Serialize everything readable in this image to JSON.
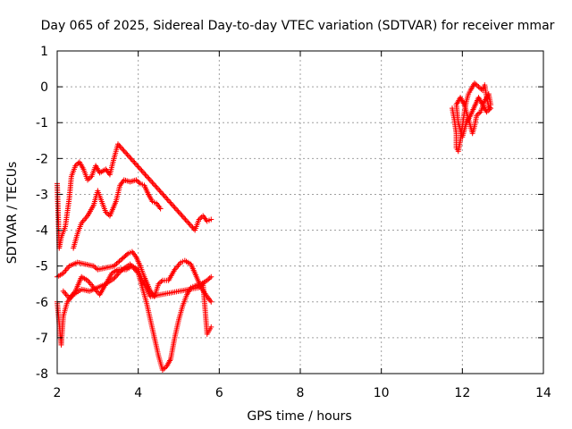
{
  "chart_data": {
    "type": "scatter",
    "title": "Day 065 of 2025, Sidereal Day-to-day VTEC variation (SDTVAR) for receiver mmar",
    "xlabel": "GPS time / hours",
    "ylabel": "SDTVAR / TECUs",
    "xlim": [
      2,
      14
    ],
    "ylim": [
      -8,
      1
    ],
    "xticks": [
      "2",
      "4",
      "6",
      "8",
      "10",
      "12",
      "14"
    ],
    "yticks": [
      "1",
      "0",
      "-1",
      "-2",
      "-3",
      "-4",
      "-5",
      "-6",
      "-7",
      "-8"
    ],
    "grid": true,
    "marker": "+",
    "color": "#ff0000",
    "series": [
      {
        "points": [
          [
            2.0,
            -6.0
          ],
          [
            2.05,
            -6.6
          ],
          [
            2.1,
            -7.2
          ],
          [
            2.15,
            -6.4
          ],
          [
            2.25,
            -6.0
          ],
          [
            2.4,
            -5.8
          ],
          [
            2.6,
            -5.65
          ],
          [
            2.8,
            -5.7
          ],
          [
            3.0,
            -5.6
          ],
          [
            3.2,
            -5.5
          ],
          [
            3.4,
            -5.35
          ],
          [
            3.6,
            -5.1
          ],
          [
            3.8,
            -4.95
          ],
          [
            4.0,
            -5.2
          ],
          [
            4.1,
            -5.6
          ],
          [
            4.2,
            -6.0
          ],
          [
            4.3,
            -6.5
          ],
          [
            4.4,
            -7.0
          ],
          [
            4.5,
            -7.5
          ],
          [
            4.6,
            -7.9
          ],
          [
            4.7,
            -7.8
          ],
          [
            4.8,
            -7.6
          ],
          [
            4.9,
            -7.0
          ],
          [
            5.0,
            -6.5
          ],
          [
            5.1,
            -6.1
          ],
          [
            5.2,
            -5.8
          ],
          [
            5.3,
            -5.6
          ],
          [
            5.4,
            -5.55
          ],
          [
            5.55,
            -5.5
          ],
          [
            5.7,
            -5.4
          ],
          [
            5.8,
            -5.3
          ]
        ]
      },
      {
        "points": [
          [
            2.0,
            -5.3
          ],
          [
            2.15,
            -5.2
          ],
          [
            2.3,
            -5.0
          ],
          [
            2.5,
            -4.9
          ],
          [
            2.7,
            -4.95
          ],
          [
            2.9,
            -5.0
          ],
          [
            3.0,
            -5.1
          ],
          [
            3.2,
            -5.05
          ],
          [
            3.4,
            -5.0
          ],
          [
            3.6,
            -4.8
          ],
          [
            3.75,
            -4.65
          ],
          [
            3.85,
            -4.6
          ],
          [
            3.95,
            -4.75
          ],
          [
            4.05,
            -5.0
          ],
          [
            4.15,
            -5.3
          ],
          [
            4.3,
            -5.7
          ],
          [
            4.4,
            -5.85
          ],
          [
            4.5,
            -5.5
          ],
          [
            4.6,
            -5.4
          ],
          [
            4.75,
            -5.4
          ],
          [
            4.9,
            -5.1
          ],
          [
            5.05,
            -4.9
          ],
          [
            5.15,
            -4.85
          ],
          [
            5.3,
            -4.95
          ],
          [
            5.4,
            -5.2
          ],
          [
            5.55,
            -5.6
          ],
          [
            5.7,
            -5.85
          ],
          [
            5.8,
            -6.0
          ]
        ]
      },
      {
        "points": [
          [
            2.0,
            -2.7
          ],
          [
            2.05,
            -4.5
          ],
          [
            2.1,
            -4.2
          ],
          [
            2.2,
            -3.9
          ],
          [
            2.3,
            -3.1
          ],
          [
            2.35,
            -2.5
          ],
          [
            2.45,
            -2.2
          ],
          [
            2.55,
            -2.1
          ],
          [
            2.65,
            -2.3
          ],
          [
            2.75,
            -2.6
          ],
          [
            2.85,
            -2.5
          ],
          [
            2.95,
            -2.2
          ],
          [
            3.05,
            -2.4
          ],
          [
            3.2,
            -2.3
          ],
          [
            3.3,
            -2.45
          ],
          [
            3.4,
            -2.0
          ],
          [
            3.5,
            -1.6
          ],
          [
            5.4,
            -4.0
          ],
          [
            5.5,
            -3.7
          ],
          [
            5.6,
            -3.6
          ],
          [
            5.7,
            -3.75
          ],
          [
            5.8,
            -3.7
          ]
        ]
      },
      {
        "points": [
          [
            2.4,
            -4.5
          ],
          [
            2.5,
            -4.1
          ],
          [
            2.6,
            -3.8
          ],
          [
            2.75,
            -3.6
          ],
          [
            2.9,
            -3.3
          ],
          [
            3.0,
            -2.9
          ],
          [
            3.1,
            -3.2
          ],
          [
            3.2,
            -3.5
          ],
          [
            3.3,
            -3.6
          ],
          [
            3.45,
            -3.2
          ],
          [
            3.55,
            -2.75
          ],
          [
            3.65,
            -2.6
          ],
          [
            3.8,
            -2.65
          ],
          [
            3.95,
            -2.6
          ],
          [
            4.05,
            -2.7
          ],
          [
            4.15,
            -2.75
          ],
          [
            4.25,
            -3.0
          ],
          [
            4.35,
            -3.2
          ],
          [
            4.45,
            -3.25
          ],
          [
            4.55,
            -3.4
          ]
        ]
      },
      {
        "points": [
          [
            2.15,
            -5.7
          ],
          [
            2.3,
            -5.9
          ],
          [
            2.45,
            -5.7
          ],
          [
            2.6,
            -5.3
          ],
          [
            2.75,
            -5.4
          ],
          [
            2.9,
            -5.6
          ],
          [
            3.05,
            -5.8
          ],
          [
            3.2,
            -5.5
          ],
          [
            3.35,
            -5.2
          ],
          [
            3.5,
            -5.1
          ],
          [
            3.7,
            -5.1
          ],
          [
            3.85,
            -5.0
          ],
          [
            4.0,
            -5.1
          ],
          [
            4.1,
            -5.4
          ],
          [
            4.2,
            -5.6
          ],
          [
            4.3,
            -5.85
          ],
          [
            5.5,
            -5.6
          ],
          [
            5.6,
            -5.5
          ],
          [
            5.7,
            -6.9
          ],
          [
            5.75,
            -6.8
          ],
          [
            5.8,
            -6.7
          ]
        ]
      },
      {
        "points": [
          [
            11.75,
            -0.6
          ],
          [
            11.8,
            -0.9
          ],
          [
            11.85,
            -1.3
          ],
          [
            11.85,
            -1.7
          ],
          [
            11.9,
            -1.8
          ],
          [
            11.95,
            -1.5
          ],
          [
            12.0,
            -1.1
          ],
          [
            12.05,
            -0.7
          ],
          [
            12.1,
            -0.4
          ],
          [
            12.15,
            -0.2
          ],
          [
            12.2,
            -0.1
          ],
          [
            12.3,
            0.1
          ],
          [
            12.4,
            0.0
          ],
          [
            12.5,
            -0.1
          ],
          [
            12.55,
            0.05
          ],
          [
            12.6,
            -0.3
          ],
          [
            12.65,
            -0.55
          ],
          [
            12.7,
            -0.6
          ],
          [
            12.6,
            -0.7
          ],
          [
            12.5,
            -0.5
          ],
          [
            12.4,
            -0.3
          ],
          [
            12.3,
            -0.55
          ],
          [
            12.2,
            -0.8
          ],
          [
            12.1,
            -1.0
          ],
          [
            12.0,
            -1.4
          ],
          [
            11.9,
            -1.0
          ],
          [
            11.85,
            -0.5
          ],
          [
            11.95,
            -0.3
          ],
          [
            12.05,
            -0.5
          ],
          [
            12.15,
            -0.9
          ],
          [
            12.25,
            -1.3
          ],
          [
            12.3,
            -1.1
          ],
          [
            12.35,
            -0.8
          ],
          [
            12.45,
            -0.7
          ],
          [
            12.55,
            -0.4
          ],
          [
            12.65,
            -0.2
          ],
          [
            12.7,
            -0.5
          ]
        ]
      }
    ]
  }
}
